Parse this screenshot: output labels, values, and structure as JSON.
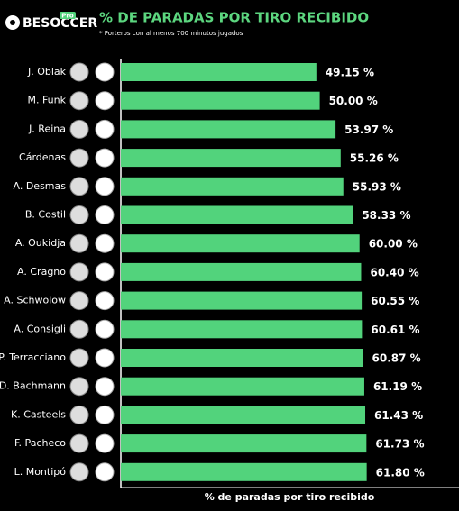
{
  "logo": "BESOCCER",
  "logo_badge": "Pro",
  "chart_data": {
    "type": "barh",
    "title": "% DE PARADAS POR TIRO RECIBIDO",
    "subtitle": "* Porteros con al menos 700 minutos jugados",
    "x_label": "% de paradas por tiro recibido",
    "categories": [
      "J. Oblak",
      "M. Funk",
      "J. Reina",
      "Cárdenas",
      "A. Desmas",
      "B. Costil",
      "A. Oukidja",
      "A. Cragno",
      "A. Schwolow",
      "A. Consigli",
      "P. Terracciano",
      "D. Bachmann",
      "K. Casteels",
      "F. Pacheco",
      "L. Montipó"
    ],
    "values": [
      49.15,
      50.0,
      53.97,
      55.26,
      55.93,
      58.33,
      60.0,
      60.4,
      60.55,
      60.61,
      60.87,
      61.19,
      61.43,
      61.73,
      61.8
    ],
    "value_labels": [
      "49.15 %",
      "50.00 %",
      "53.97 %",
      "55.26 %",
      "55.93 %",
      "58.33 %",
      "60.00 %",
      "60.40 %",
      "60.55 %",
      "60.61 %",
      "60.87 %",
      "61.19 %",
      "61.43 %",
      "61.73 %",
      "61.80 %"
    ],
    "color": "#52d37c",
    "xlim": [
      0,
      85
    ]
  }
}
